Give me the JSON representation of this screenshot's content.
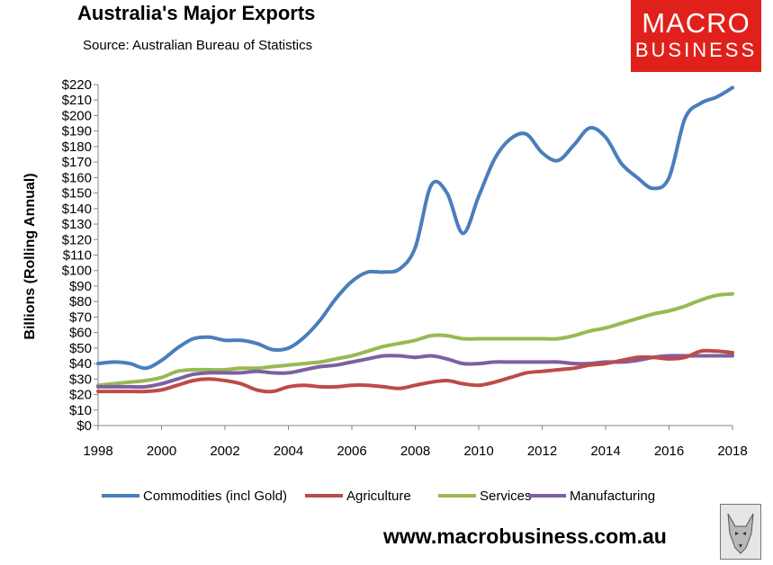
{
  "header": {
    "title": "Australia's Major Exports",
    "source": "Source:  Australian Bureau of Statistics"
  },
  "logo": {
    "line1": "MACRO",
    "line2": "BUSINESS"
  },
  "footer": {
    "url": "www.macrobusiness.com.au"
  },
  "chart_data": {
    "type": "line",
    "title": "Australia's Major Exports",
    "xlabel": "",
    "ylabel": "Billions (Rolling Annual)",
    "xlim": [
      1998,
      2018
    ],
    "ylim": [
      0,
      220
    ],
    "x_ticks": [
      "1998",
      "2000",
      "2002",
      "2004",
      "2006",
      "2008",
      "2010",
      "2012",
      "2014",
      "2016",
      "2018"
    ],
    "y_ticks": [
      "$0",
      "$10",
      "$20",
      "$30",
      "$40",
      "$50",
      "$60",
      "$70",
      "$80",
      "$90",
      "$100",
      "$110",
      "$120",
      "$130",
      "$140",
      "$150",
      "$160",
      "$170",
      "$180",
      "$190",
      "$200",
      "$210",
      "$220"
    ],
    "grid": false,
    "legend_position": "bottom",
    "x": [
      1998,
      1998.5,
      1999,
      1999.5,
      2000,
      2000.5,
      2001,
      2001.5,
      2002,
      2002.5,
      2003,
      2003.5,
      2004,
      2004.5,
      2005,
      2005.5,
      2006,
      2006.5,
      2007,
      2007.5,
      2008,
      2008.5,
      2009,
      2009.5,
      2010,
      2010.5,
      2011,
      2011.5,
      2012,
      2012.5,
      2013,
      2013.5,
      2014,
      2014.5,
      2015,
      2015.5,
      2016,
      2016.5,
      2017,
      2017.5,
      2018
    ],
    "series": [
      {
        "name": "Commodities (incl Gold)",
        "color": "#4a7ebb",
        "values": [
          40,
          41,
          40,
          37,
          42,
          50,
          56,
          57,
          55,
          55,
          53,
          49,
          50,
          57,
          68,
          82,
          93,
          99,
          99,
          101,
          115,
          155,
          150,
          124,
          148,
          172,
          185,
          188,
          176,
          171,
          181,
          192,
          186,
          169,
          160,
          153,
          160,
          198,
          208,
          212,
          218
        ]
      },
      {
        "name": "Agriculture",
        "color": "#be4b48",
        "values": [
          22,
          22,
          22,
          22,
          23,
          26,
          29,
          30,
          29,
          27,
          23,
          22,
          25,
          26,
          25,
          25,
          26,
          26,
          25,
          24,
          26,
          28,
          29,
          27,
          26,
          28,
          31,
          34,
          35,
          36,
          37,
          39,
          40,
          42,
          44,
          44,
          43,
          44,
          48,
          48,
          47
        ]
      },
      {
        "name": "Services",
        "color": "#98b954",
        "values": [
          26,
          27,
          28,
          29,
          31,
          35,
          36,
          36,
          36,
          37,
          37,
          38,
          39,
          40,
          41,
          43,
          45,
          48,
          51,
          53,
          55,
          58,
          58,
          56,
          56,
          56,
          56,
          56,
          56,
          56,
          58,
          61,
          63,
          66,
          69,
          72,
          74,
          77,
          81,
          84,
          85
        ]
      },
      {
        "name": "Manufacturing",
        "color": "#7d60a0",
        "values": [
          25,
          25,
          25,
          25,
          27,
          30,
          33,
          34,
          34,
          34,
          35,
          34,
          34,
          36,
          38,
          39,
          41,
          43,
          45,
          45,
          44,
          45,
          43,
          40,
          40,
          41,
          41,
          41,
          41,
          41,
          40,
          40,
          41,
          41,
          42,
          44,
          45,
          45,
          45,
          45,
          45
        ]
      }
    ]
  }
}
